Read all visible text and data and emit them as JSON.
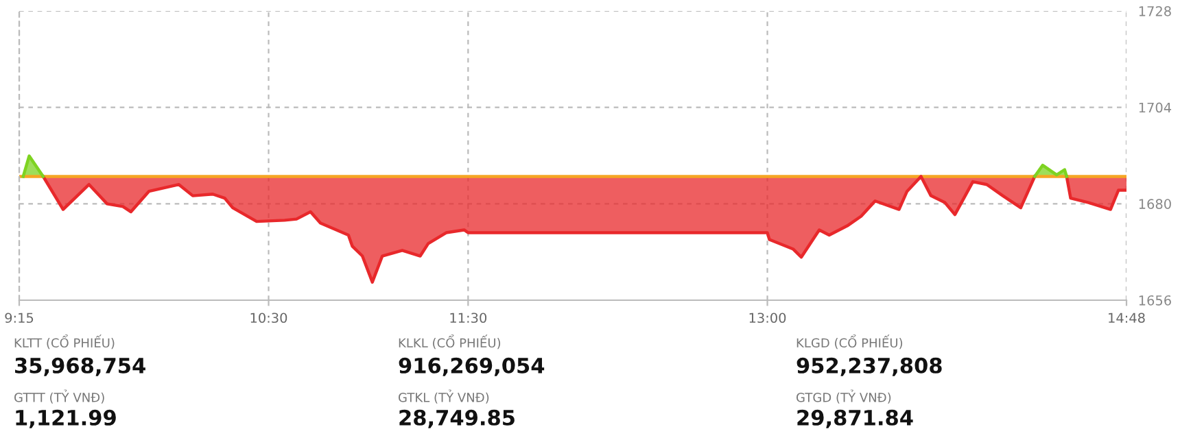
{
  "chart_data": {
    "type": "line",
    "x": [
      9.27,
      9.3,
      9.37,
      9.47,
      9.6,
      9.69,
      9.77,
      9.81,
      9.9,
      10.05,
      10.12,
      10.22,
      10.28,
      10.32,
      10.44,
      10.58,
      10.64,
      10.71,
      10.76,
      10.9,
      10.92,
      10.97,
      11.02,
      11.07,
      11.17,
      11.26,
      11.3,
      11.39,
      11.48,
      11.5,
      13.0,
      13.01,
      13.13,
      13.17,
      13.26,
      13.31,
      13.4,
      13.47,
      13.54,
      13.66,
      13.7,
      13.77,
      13.82,
      13.89,
      13.94,
      14.03,
      14.1,
      14.18,
      14.27,
      14.34,
      14.38,
      14.45,
      14.49,
      14.5,
      14.52,
      14.61,
      14.72,
      14.76,
      14.8
    ],
    "series": [
      {
        "color": "#e8282b",
        "values": [
          null,
          null,
          1686.8,
          1678.6,
          1684.8,
          1680.0,
          1679.3,
          1678.0,
          1683.1,
          1684.8,
          1682.0,
          1682.4,
          1681.4,
          1679.0,
          1675.6,
          1675.9,
          1676.2,
          1678.0,
          1675.2,
          1672.2,
          1669.4,
          1667.0,
          1660.5,
          1667.0,
          1668.4,
          1667.0,
          1670.1,
          1672.8,
          1673.5,
          1672.8,
          1672.8,
          1671.1,
          1668.7,
          1666.7,
          1673.5,
          1672.2,
          1674.5,
          1676.9,
          1680.7,
          1678.6,
          1683.1,
          1686.8,
          1682.0,
          1680.3,
          1677.3,
          1685.5,
          1684.8,
          1682.0,
          1679.0,
          1686.8,
          null,
          null,
          null,
          1686.8,
          1681.4,
          1680.3,
          1678.6,
          1683.4,
          1683.4
        ],
        "lower": [
          null,
          null,
          1686.8,
          1678.6,
          1684.8,
          1680.0,
          1679.3,
          1678.0,
          1683.1,
          1684.8,
          1682.0,
          1682.4,
          1681.4,
          1679.0,
          1675.6,
          1675.9,
          1676.2,
          1678.0,
          1675.2,
          1672.2,
          1669.4,
          1667.0,
          1660.5,
          1667.0,
          1668.4,
          1667.0,
          1670.1,
          1672.8,
          1673.5,
          1672.8,
          1672.8,
          1671.1,
          1668.7,
          1666.7,
          1673.5,
          1672.2,
          1674.5,
          1676.9,
          1680.7,
          1678.6,
          1683.1,
          1686.8,
          1682.0,
          1680.3,
          1677.3,
          1685.5,
          1684.8,
          1682.0,
          1679.0,
          1686.8,
          null,
          null,
          null,
          1686.8,
          1681.4,
          1680.3,
          1678.6,
          1683.4,
          1683.4
        ],
        "upper": [
          null,
          null,
          1686.8,
          1686.8,
          1686.8,
          1686.8,
          1686.8,
          1686.8,
          1686.8,
          1686.8,
          1686.8,
          1686.8,
          1686.8,
          1686.8,
          1686.8,
          1686.8,
          1686.8,
          1686.8,
          1686.8,
          1686.8,
          1686.8,
          1686.8,
          1686.8,
          1686.8,
          1686.8,
          1686.8,
          1686.8,
          1686.8,
          1686.8,
          1686.8,
          1686.8,
          1686.8,
          1686.8,
          1686.8,
          1686.8,
          1686.8,
          1686.8,
          1686.8,
          1686.8,
          1686.8,
          1686.8,
          1686.8,
          1686.8,
          1686.8,
          1686.8,
          1686.8,
          1686.8,
          1686.8,
          1686.8,
          1686.8,
          null,
          null,
          null,
          1686.8,
          1686.8,
          1686.8,
          1686.8,
          1686.8,
          1686.8
        ]
      },
      {
        "color": "#7ed321",
        "values": [
          1686.8,
          1691.9,
          1686.8,
          null,
          null,
          null,
          null,
          null,
          null,
          null,
          null,
          null,
          null,
          null,
          null,
          null,
          null,
          null,
          null,
          null,
          null,
          null,
          null,
          null,
          null,
          null,
          null,
          null,
          null,
          null,
          null,
          null,
          null,
          null,
          null,
          null,
          null,
          null,
          null,
          null,
          null,
          null,
          null,
          null,
          null,
          null,
          null,
          null,
          null,
          1686.8,
          1689.6,
          1687.2,
          1688.5,
          1686.8,
          null,
          null,
          null,
          null,
          null
        ],
        "lower": [
          1686.8,
          1686.8,
          1686.8,
          null,
          null,
          null,
          null,
          null,
          null,
          null,
          null,
          null,
          null,
          null,
          null,
          null,
          null,
          null,
          null,
          null,
          null,
          null,
          null,
          null,
          null,
          null,
          null,
          null,
          null,
          null,
          null,
          null,
          null,
          null,
          null,
          null,
          null,
          null,
          null,
          null,
          null,
          null,
          null,
          null,
          null,
          null,
          null,
          null,
          null,
          1686.8,
          1686.8,
          1686.8,
          1686.8,
          1686.8,
          null,
          null,
          null,
          null,
          null
        ],
        "upper": [
          1686.8,
          1691.9,
          1686.8,
          null,
          null,
          null,
          null,
          null,
          null,
          null,
          null,
          null,
          null,
          null,
          null,
          null,
          null,
          null,
          null,
          null,
          null,
          null,
          null,
          null,
          null,
          null,
          null,
          null,
          null,
          null,
          null,
          null,
          null,
          null,
          null,
          null,
          null,
          null,
          null,
          null,
          null,
          null,
          null,
          null,
          null,
          null,
          null,
          null,
          null,
          1686.8,
          1689.6,
          1687.2,
          1688.5,
          1686.8,
          null,
          null,
          null,
          null,
          null
        ]
      }
    ],
    "ref_lines": [
      {
        "axis": "y",
        "value": 1686.8,
        "color": "#f5a623"
      }
    ],
    "xlim": [
      9.25,
      14.8
    ],
    "xticks": [
      {
        "value": 9.25,
        "label": "9:15"
      },
      {
        "value": 10.5,
        "label": "10:30"
      },
      {
        "value": 11.5,
        "label": "11:30"
      },
      {
        "value": 13.0,
        "label": "13:00"
      },
      {
        "value": 14.8,
        "label": "14:48"
      }
    ],
    "ylim": [
      1656,
      1728
    ],
    "yticks": [
      1656,
      1680,
      1704,
      1728
    ],
    "grid": true,
    "annotations": [
      "KLTT (CỔ PHIẾU)",
      "35,968,754",
      "GTTT (TỶ VNĐ)",
      "1,121.99",
      "KLKL (CỔ PHIẾU)",
      "916,269,054",
      "GTKL (TỶ VNĐ)",
      "28,749.85",
      "KLGD (CỔ PHIẾU)",
      "952,237,808",
      "GTGD (TỶ VNĐ)",
      "29,871.84"
    ]
  }
}
